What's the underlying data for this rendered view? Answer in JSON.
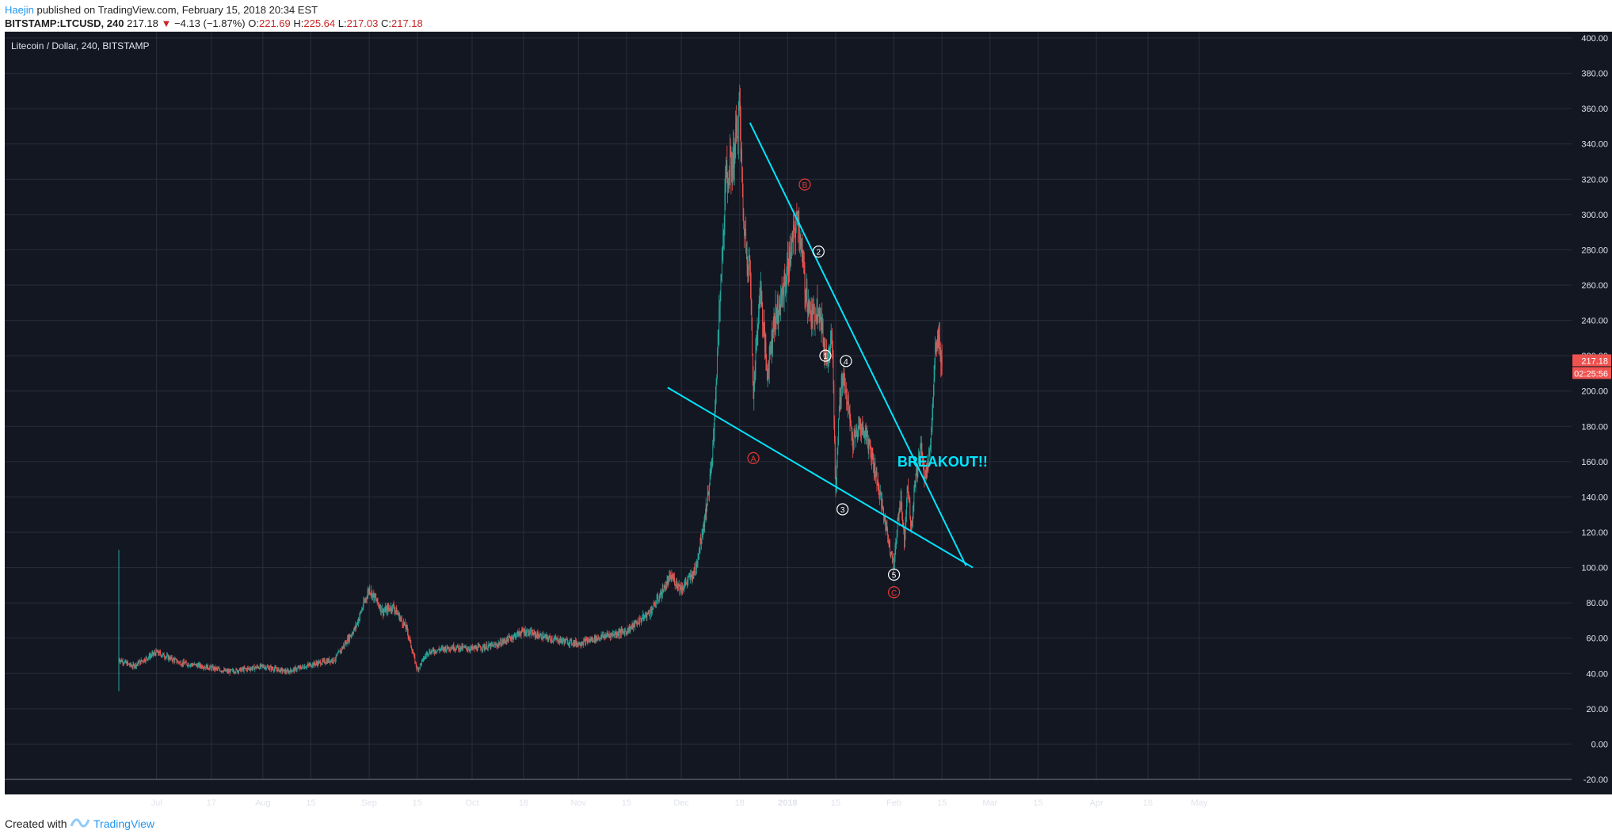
{
  "header": {
    "author": "Haejin",
    "published_text": " published on TradingView.com, February 15, 2018 20:34 EST",
    "symbol": "BITSTAMP:LTCUSD, 240",
    "last": "217.18",
    "change_arrow": "▼",
    "change": "−4.13 (−1.87%)",
    "open_label": "O:",
    "open": "221.69",
    "high_label": "H:",
    "high": "225.64",
    "low_label": "L:",
    "low": "217.03",
    "close_label": "C:",
    "close": "217.18"
  },
  "footer": {
    "created_with": "Created with",
    "brand": "TradingView"
  },
  "colors": {
    "background": "#131722",
    "grid": "#2a2e39",
    "axis_text": "#e0e3eb",
    "up": "#26a69a",
    "down": "#ef5350",
    "trendline": "#00e5ff",
    "wave_red": "#e53935",
    "wave_white": "#ffffff",
    "price_tag": "#ef5350"
  },
  "chart_data": {
    "type": "candlestick",
    "title": "Litecoin / Dollar, 240, BITSTAMP",
    "ylim": [
      -20,
      400
    ],
    "y_ticks": [
      "400.00",
      "380.00",
      "360.00",
      "340.00",
      "320.00",
      "300.00",
      "280.00",
      "260.00",
      "240.00",
      "220.00",
      "200.00",
      "180.00",
      "160.00",
      "140.00",
      "120.00",
      "100.00",
      "80.00",
      "60.00",
      "40.00",
      "20.00",
      "0.00",
      "-20.00"
    ],
    "x_ticks": [
      "Jul",
      "17",
      "Aug",
      "15",
      "Sep",
      "15",
      "Oct",
      "16",
      "Nov",
      "15",
      "Dec",
      "18",
      "2018",
      "15",
      "Feb",
      "15",
      "Mar",
      "15",
      "Apr",
      "16",
      "May"
    ],
    "last_price_label": "217.18",
    "countdown_label": "02:25:56",
    "x": [
      "2017-06-20",
      "2017-06-24",
      "2017-07-01",
      "2017-07-08",
      "2017-07-15",
      "2017-07-22",
      "2017-08-01",
      "2017-08-08",
      "2017-08-15",
      "2017-08-22",
      "2017-08-28",
      "2017-09-01",
      "2017-09-05",
      "2017-09-08",
      "2017-09-12",
      "2017-09-15",
      "2017-09-18",
      "2017-09-25",
      "2017-10-01",
      "2017-10-08",
      "2017-10-16",
      "2017-10-23",
      "2017-11-01",
      "2017-11-08",
      "2017-11-15",
      "2017-11-22",
      "2017-11-28",
      "2017-12-01",
      "2017-12-05",
      "2017-12-08",
      "2017-12-10",
      "2017-12-12",
      "2017-12-14",
      "2017-12-16",
      "2017-12-18",
      "2017-12-19",
      "2017-12-20",
      "2017-12-21",
      "2017-12-22",
      "2017-12-24",
      "2017-12-26",
      "2017-12-28",
      "2017-12-30",
      "2018-01-01",
      "2018-01-04",
      "2018-01-06",
      "2018-01-08",
      "2018-01-10",
      "2018-01-12",
      "2018-01-14",
      "2018-01-15",
      "2018-01-16",
      "2018-01-17",
      "2018-01-18",
      "2018-01-20",
      "2018-01-22",
      "2018-01-24",
      "2018-01-26",
      "2018-01-28",
      "2018-01-30",
      "2018-02-01",
      "2018-02-02",
      "2018-02-03",
      "2018-02-04",
      "2018-02-05",
      "2018-02-06",
      "2018-02-07",
      "2018-02-08",
      "2018-02-09",
      "2018-02-10",
      "2018-02-11",
      "2018-02-12",
      "2018-02-13",
      "2018-02-14",
      "2018-02-15"
    ],
    "close": [
      48,
      44,
      52,
      46,
      44,
      41,
      44,
      41,
      45,
      48,
      66,
      88,
      75,
      78,
      65,
      42,
      52,
      55,
      54,
      56,
      64,
      60,
      57,
      61,
      64,
      75,
      95,
      88,
      98,
      130,
      160,
      240,
      320,
      330,
      360,
      300,
      280,
      270,
      200,
      260,
      210,
      240,
      250,
      270,
      300,
      260,
      240,
      250,
      220,
      230,
      140,
      190,
      210,
      200,
      170,
      180,
      175,
      160,
      140,
      120,
      100,
      125,
      140,
      115,
      150,
      120,
      145,
      160,
      170,
      150,
      160,
      180,
      220,
      230,
      217
    ],
    "wave_labels": [
      {
        "text": "A",
        "date": "2017-12-22",
        "price": 162,
        "color": "red"
      },
      {
        "text": "B",
        "date": "2018-01-06",
        "price": 317,
        "color": "red"
      },
      {
        "text": "C",
        "date": "2018-02-01",
        "price": 86,
        "color": "red"
      },
      {
        "text": "1",
        "date": "2018-01-12",
        "price": 220,
        "color": "white"
      },
      {
        "text": "2",
        "date": "2018-01-10",
        "price": 279,
        "color": "white"
      },
      {
        "text": "3",
        "date": "2018-01-17",
        "price": 133,
        "color": "white"
      },
      {
        "text": "4",
        "date": "2018-01-18",
        "price": 217,
        "color": "white"
      },
      {
        "text": "5",
        "date": "2018-02-01",
        "price": 96,
        "color": "white"
      }
    ],
    "trendlines": [
      {
        "name": "upper",
        "from": {
          "date": "2017-12-21",
          "price": 352
        },
        "to": {
          "date": "2018-02-22",
          "price": 101
        }
      },
      {
        "name": "lower",
        "from": {
          "date": "2017-11-27",
          "price": 202
        },
        "to": {
          "date": "2018-02-24",
          "price": 100
        }
      }
    ],
    "annotation": {
      "text": "BREAKOUT!!",
      "date": "2018-02-20",
      "price": 160
    }
  }
}
